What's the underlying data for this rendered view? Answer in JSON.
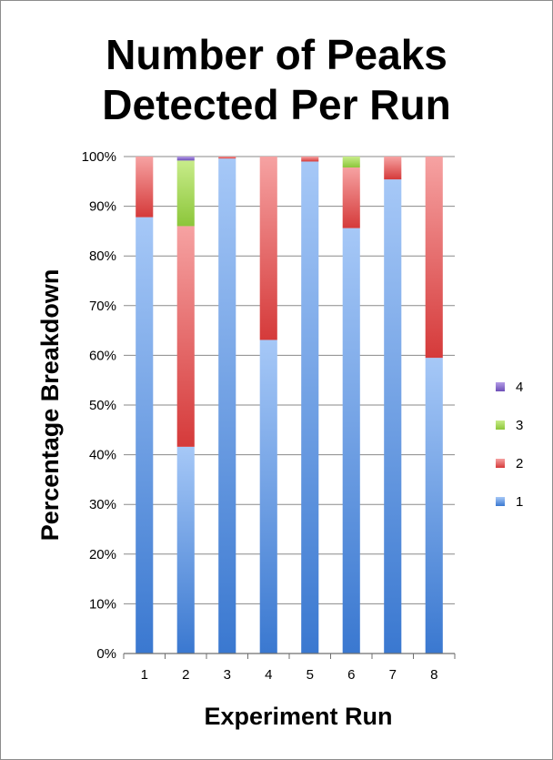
{
  "chart_data": {
    "type": "bar",
    "stacked": "percent",
    "title_lines": [
      "Number of Peaks",
      "Detected Per Run"
    ],
    "xlabel": "Experiment Run",
    "ylabel": "Percentage Breakdown",
    "ylim": [
      0,
      100
    ],
    "yticks": [
      "0%",
      "10%",
      "20%",
      "30%",
      "40%",
      "50%",
      "60%",
      "70%",
      "80%",
      "90%",
      "100%"
    ],
    "categories": [
      "1",
      "2",
      "3",
      "4",
      "5",
      "6",
      "7",
      "8"
    ],
    "grid": true,
    "legend_position": "right",
    "series": [
      {
        "name": "1",
        "color": "#4f86d4",
        "values": [
          87.8,
          41.6,
          99.6,
          63.1,
          99.0,
          85.6,
          95.4,
          59.5
        ]
      },
      {
        "name": "2",
        "color": "#e04a4a",
        "values": [
          12.2,
          44.4,
          0.4,
          36.9,
          1.0,
          12.2,
          4.6,
          40.5
        ]
      },
      {
        "name": "3",
        "color": "#9acd32",
        "values": [
          0,
          13.2,
          0,
          0,
          0,
          2.2,
          0,
          0
        ]
      },
      {
        "name": "4",
        "color": "#7b5cc4",
        "values": [
          0,
          0.8,
          0,
          0,
          0,
          0,
          0,
          0
        ]
      }
    ]
  }
}
